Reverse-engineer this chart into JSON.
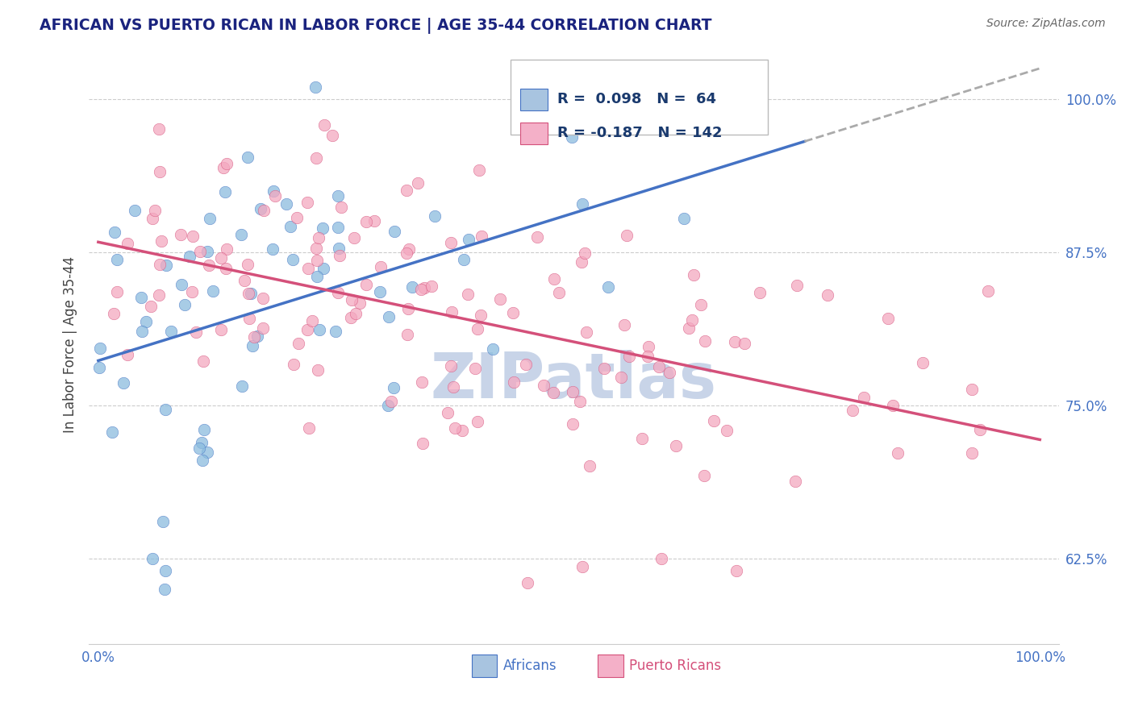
{
  "title": "AFRICAN VS PUERTO RICAN IN LABOR FORCE | AGE 35-44 CORRELATION CHART",
  "source_text": "Source: ZipAtlas.com",
  "ylabel": "In Labor Force | Age 35-44",
  "ytick_values": [
    0.625,
    0.75,
    0.875,
    1.0
  ],
  "legend_color1": "#a8c4e0",
  "legend_color2": "#f4b0c8",
  "scatter_color_african": "#8bbcde",
  "scatter_color_puerto": "#f4a8c0",
  "trendline_color_african": "#4472c4",
  "trendline_color_puerto": "#d4507a",
  "watermark_text": "ZIPatlas",
  "watermark_color": "#c8d4e8",
  "background_color": "#ffffff",
  "grid_color": "#cccccc",
  "title_color": "#1a237e",
  "source_color": "#666666",
  "label_color": "#444444",
  "legend_text_color": "#1a3a6e",
  "R_african": 0.098,
  "N_african": 64,
  "R_puerto": -0.187,
  "N_puerto": 142
}
